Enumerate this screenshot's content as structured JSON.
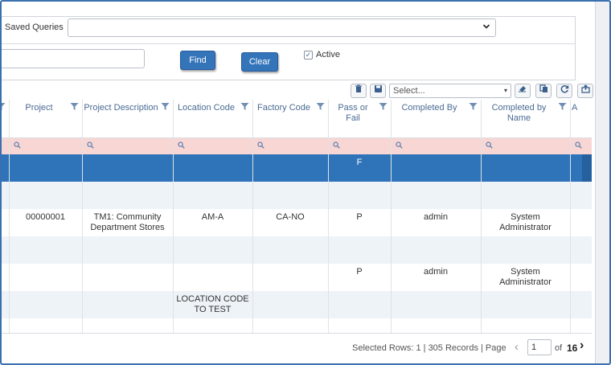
{
  "filters": {
    "saved_queries_label": "Saved Queries",
    "saved_queries_value": "",
    "search_value": "",
    "find_label": "Find",
    "clear_label": "Clear",
    "active_label": "Active",
    "active_checked": true
  },
  "toolbar": {
    "select_placeholder": "Select...",
    "icons": [
      "delete-icon",
      "save-icon",
      "eraser-icon",
      "copy-icon",
      "refresh-icon",
      "export-icon"
    ]
  },
  "grid": {
    "columns": [
      {
        "label": "",
        "key": "lead"
      },
      {
        "label": "Project",
        "key": "project"
      },
      {
        "label": "Project Description",
        "key": "project_description"
      },
      {
        "label": "Location Code",
        "key": "location_code"
      },
      {
        "label": "Factory Code",
        "key": "factory_code"
      },
      {
        "label": "Pass or Fail",
        "key": "pass_fail"
      },
      {
        "label": "Completed By",
        "key": "completed_by"
      },
      {
        "label": "Completed by Name",
        "key": "completed_by_name"
      },
      {
        "label": "A",
        "key": "next"
      }
    ],
    "rows": [
      {
        "project": "",
        "project_description": "",
        "location_code": "",
        "factory_code": "",
        "pass_fail": "F",
        "completed_by": "",
        "completed_by_name": "",
        "selected": true
      },
      {
        "project": "",
        "project_description": "",
        "location_code": "",
        "factory_code": "",
        "pass_fail": "",
        "completed_by": "",
        "completed_by_name": ""
      },
      {
        "project": "00000001",
        "project_description": "TM1: Community Department Stores",
        "location_code": "AM-A",
        "factory_code": "CA-NO",
        "pass_fail": "P",
        "completed_by": "admin",
        "completed_by_name": "System Administrator"
      },
      {
        "project": "",
        "project_description": "",
        "location_code": "",
        "factory_code": "",
        "pass_fail": "",
        "completed_by": "",
        "completed_by_name": ""
      },
      {
        "project": "",
        "project_description": "",
        "location_code": "",
        "factory_code": "",
        "pass_fail": "P",
        "completed_by": "admin",
        "completed_by_name": "System Administrator"
      },
      {
        "project": "",
        "project_description": "",
        "location_code": "LOCATION CODE TO TEST",
        "factory_code": "",
        "pass_fail": "",
        "completed_by": "",
        "completed_by_name": ""
      }
    ]
  },
  "footer": {
    "status_text": "Selected Rows: 1 | 305 Records | Page",
    "page_value": "1",
    "of_label": "of",
    "total_pages": "16"
  },
  "colors": {
    "accent": "#3474b9",
    "selected_row": "#2f73b8",
    "filter_row": "#f8d6d4",
    "header_text": "#4a6b94"
  }
}
